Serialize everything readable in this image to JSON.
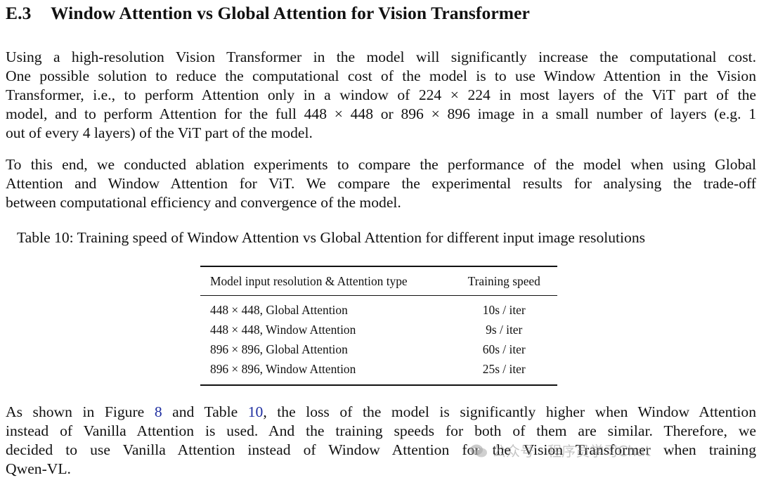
{
  "section": {
    "number": "E.3",
    "title": "Window Attention vs Global Attention for Vision Transformer"
  },
  "paragraph1": {
    "lines": [
      "Using a high-resolution Vision Transformer in the model will significantly increase the computational cost.",
      "One possible solution to reduce the computational cost of the model is to use Window Attention in the Vision",
      "Transformer, i.e., to perform Attention only in a window of 224 × 224 in most layers of the ViT part of the",
      "model, and to perform Attention for the full 448 × 448 or 896 × 896 image in a small number of layers (e.g. 1",
      "out of every 4 layers) of the ViT part of the model."
    ]
  },
  "paragraph2": {
    "lines": [
      "To this end, we conducted ablation experiments to compare the performance of the model when using Global",
      "Attention and Window Attention for ViT. We compare the experimental results for analysing the trade-off",
      "between computational efficiency and convergence of the model."
    ]
  },
  "table": {
    "caption": "Table 10: Training speed of Window Attention vs Global Attention for different input image resolutions",
    "headers": [
      "Model input resolution & Attention type",
      "Training speed"
    ],
    "rows": [
      [
        "448 × 448, Global Attention",
        "10s / iter"
      ],
      [
        "448 × 448, Window Attention",
        "9s / iter"
      ],
      [
        "896 × 896, Global Attention",
        "60s / iter"
      ],
      [
        "896 × 896, Window Attention",
        "25s / iter"
      ]
    ]
  },
  "paragraph3": {
    "line1": {
      "a": "As shown in Figure ",
      "ref1": "8",
      "b": " and Table ",
      "ref2": "10",
      "c": ", the loss of the model is significantly higher when Window Attention"
    },
    "lines": [
      "instead of Vanilla Attention is used. And the training speeds for both of them are similar. Therefore, we",
      "decided to use Vanilla Attention instead of Window Attention for the Vision Transformer when training",
      "Qwen-VL."
    ]
  },
  "watermark": {
    "text": "公众号 · 程序员学习Chat",
    "icon": "wechat-icon"
  },
  "colors": {
    "text": "#111111",
    "link": "#1f2fa0"
  }
}
